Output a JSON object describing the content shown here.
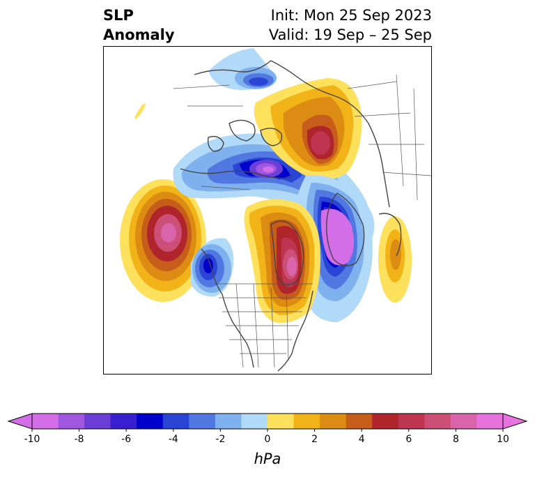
{
  "header": {
    "title_line1": "SLP",
    "title_line2": "Anomaly",
    "init_text": "Init: Mon 25 Sep 2023",
    "valid_text": "Valid: 19 Sep – 25 Sep"
  },
  "colorbar": {
    "unit": "hPa",
    "ticks": [
      "-10",
      "-8",
      "-6",
      "-4",
      "-2",
      "0",
      "2",
      "4",
      "6",
      "8",
      "10"
    ],
    "colors": [
      "#d46ee8",
      "#a157e0",
      "#6b3ed8",
      "#3a1fd0",
      "#0000cc",
      "#2a45d6",
      "#5078e0",
      "#7eb1ee",
      "#b0daf7",
      "#ffffff",
      "#fde05b",
      "#f2b318",
      "#dc8c12",
      "#c75d1b",
      "#b0242b",
      "#be3552",
      "#cc4f78",
      "#da64aa",
      "#e873de"
    ],
    "extend_low_color": "#d46ee8",
    "extend_high_color": "#e873de"
  }
}
